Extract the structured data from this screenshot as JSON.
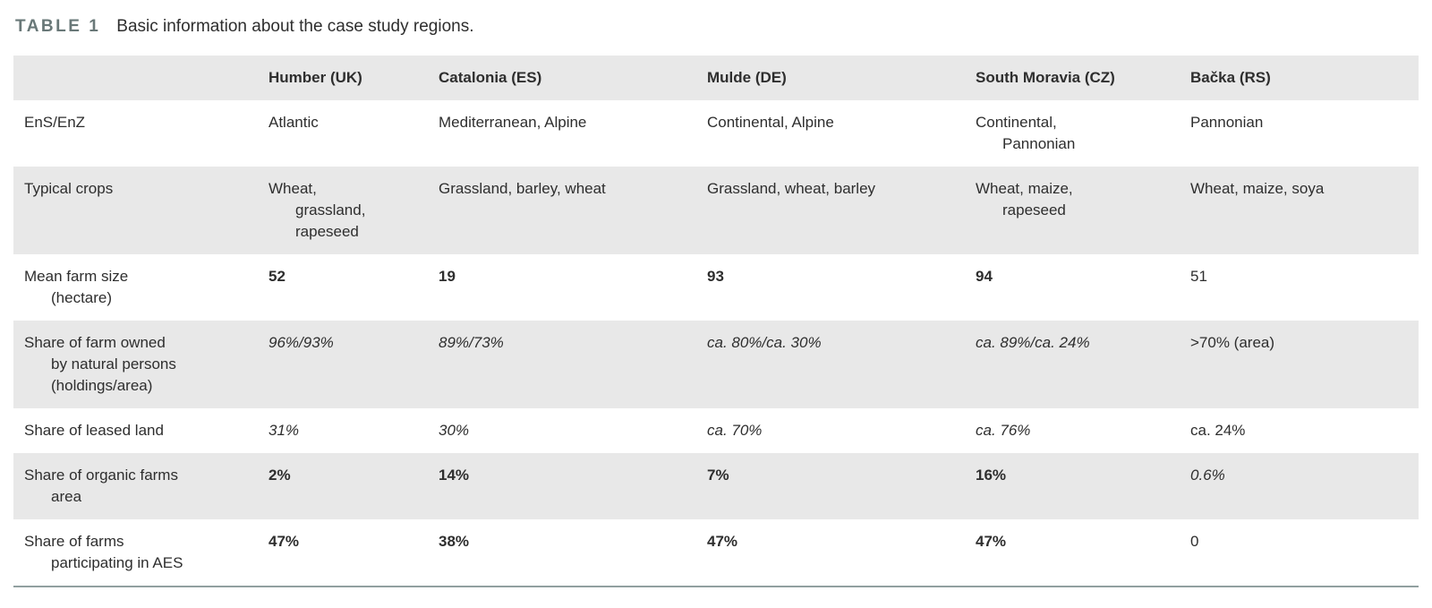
{
  "title": {
    "label": "TABLE 1",
    "text": "Basic information about the case study regions."
  },
  "colors": {
    "band": "#e8e8e8",
    "title_label": "#697878",
    "text": "#2e2e2e",
    "bottom_rule": "#91a0a0"
  },
  "table": {
    "columns": [
      "",
      "Humber (UK)",
      "Catalonia (ES)",
      "Mulde (DE)",
      "South Moravia (CZ)",
      "Bačka (RS)"
    ],
    "rows": [
      {
        "label": "EnS/EnZ",
        "cells": [
          {
            "text": "Atlantic",
            "style": "normal"
          },
          {
            "text": "Mediterranean, Alpine",
            "style": "normal"
          },
          {
            "text": "Continental, Alpine",
            "style": "normal"
          },
          {
            "text": "Continental,\nPannonian",
            "style": "normal"
          },
          {
            "text": "Pannonian",
            "style": "normal"
          }
        ]
      },
      {
        "label": "Typical crops",
        "cells": [
          {
            "text": "Wheat,\ngrassland,\nrapeseed",
            "style": "normal"
          },
          {
            "text": "Grassland, barley, wheat",
            "style": "normal"
          },
          {
            "text": "Grassland, wheat, barley",
            "style": "normal"
          },
          {
            "text": "Wheat, maize,\nrapeseed",
            "style": "normal"
          },
          {
            "text": "Wheat, maize, soya",
            "style": "normal"
          }
        ]
      },
      {
        "label": "Mean farm size\n(hectare)",
        "cells": [
          {
            "text": "52",
            "style": "bold"
          },
          {
            "text": "19",
            "style": "bold"
          },
          {
            "text": "93",
            "style": "bold"
          },
          {
            "text": "94",
            "style": "bold"
          },
          {
            "text": "51",
            "style": "normal"
          }
        ]
      },
      {
        "label": "Share of farm owned\nby natural persons\n(holdings/area)",
        "cells": [
          {
            "text": "96%/93%",
            "style": "italic"
          },
          {
            "text": "89%/73%",
            "style": "italic"
          },
          {
            "text": "ca. 80%/ca. 30%",
            "style": "italic"
          },
          {
            "text": "ca. 89%/ca. 24%",
            "style": "italic"
          },
          {
            "text": ">70% (area)",
            "style": "normal"
          }
        ]
      },
      {
        "label": "Share of leased land",
        "cells": [
          {
            "text": "31%",
            "style": "italic"
          },
          {
            "text": "30%",
            "style": "italic"
          },
          {
            "text": "ca. 70%",
            "style": "italic"
          },
          {
            "text": "ca. 76%",
            "style": "italic"
          },
          {
            "text": "ca. 24%",
            "style": "normal"
          }
        ]
      },
      {
        "label": "Share of organic farms\narea",
        "cells": [
          {
            "text": "2%",
            "style": "bold"
          },
          {
            "text": "14%",
            "style": "bold"
          },
          {
            "text": "7%",
            "style": "bold"
          },
          {
            "text": "16%",
            "style": "bold"
          },
          {
            "text": "0.6%",
            "style": "italic"
          }
        ]
      },
      {
        "label": "Share of farms\nparticipating in AES",
        "cells": [
          {
            "text": "47%",
            "style": "bold"
          },
          {
            "text": "38%",
            "style": "bold"
          },
          {
            "text": "47%",
            "style": "bold"
          },
          {
            "text": "47%",
            "style": "bold"
          },
          {
            "text": "0",
            "style": "normal"
          }
        ]
      }
    ]
  }
}
